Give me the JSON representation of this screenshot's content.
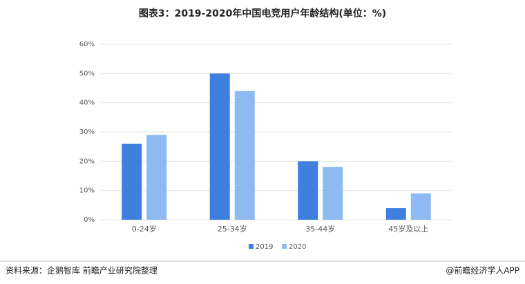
{
  "chart_data": {
    "type": "bar",
    "title": "图表3：2019-2020年中国电竞用户年龄结构(单位：%)",
    "categories": [
      "0-24岁",
      "25-34岁",
      "35-44岁",
      "45岁及以上"
    ],
    "series": [
      {
        "name": "2019",
        "color": "#3f80df",
        "values": [
          26,
          50,
          20,
          4
        ]
      },
      {
        "name": "2020",
        "color": "#8fb9f2",
        "values": [
          29,
          44,
          18,
          9
        ]
      }
    ],
    "ylim": [
      0,
      60
    ],
    "yticks": [
      {
        "value": 0,
        "label": "0%"
      },
      {
        "value": 10,
        "label": "10%"
      },
      {
        "value": 20,
        "label": "20%"
      },
      {
        "value": 30,
        "label": "30%"
      },
      {
        "value": 40,
        "label": "40%"
      },
      {
        "value": 50,
        "label": "50%"
      },
      {
        "value": 60,
        "label": "60%"
      }
    ],
    "grid": true,
    "legend": "bottom",
    "source": "资料来源：企鹅智库 前瞻产业研究院整理",
    "credit": "@前瞻经济学人APP"
  }
}
